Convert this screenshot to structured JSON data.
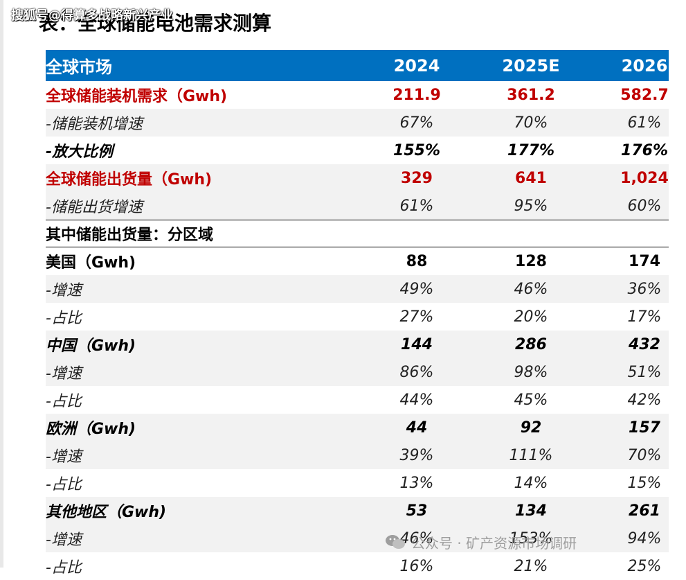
{
  "source": "搜狐号@得算多战略新兴产业",
  "title": "表：全球储能电池需求测算",
  "header": {
    "label": "全球市场",
    "years": [
      "2024",
      "2025E",
      "2026"
    ]
  },
  "rows": [
    {
      "label": "全球储能装机需求（Gwh)",
      "values": [
        "211.9",
        "361.2",
        "582.7"
      ]
    },
    {
      "label": "-储能装机增速",
      "values": [
        "67%",
        "70%",
        "61%"
      ]
    },
    {
      "label": "-放大比例",
      "values": [
        "155%",
        "177%",
        "176%"
      ]
    },
    {
      "label": "全球储能出货量（Gwh)",
      "values": [
        "329",
        "641",
        "1,024"
      ]
    },
    {
      "label": "-储能出货增速",
      "values": [
        "61%",
        "95%",
        "60%"
      ]
    },
    {
      "label": "其中储能出货量：分区域",
      "values": []
    },
    {
      "label": "美国（Gwh)",
      "values": [
        "88",
        "128",
        "174"
      ]
    },
    {
      "label": "-增速",
      "values": [
        "49%",
        "46%",
        "36%"
      ]
    },
    {
      "label": "-占比",
      "values": [
        "27%",
        "20%",
        "17%"
      ]
    },
    {
      "label": "中国（Gwh)",
      "values": [
        "144",
        "286",
        "432"
      ]
    },
    {
      "label": "-增速",
      "values": [
        "86%",
        "98%",
        "51%"
      ]
    },
    {
      "label": "-占比",
      "values": [
        "44%",
        "45%",
        "42%"
      ]
    },
    {
      "label": "欧洲（Gwh)",
      "values": [
        "44",
        "92",
        "157"
      ]
    },
    {
      "label": "-增速",
      "values": [
        "39%",
        "111%",
        "70%"
      ]
    },
    {
      "label": "-占比",
      "values": [
        "13%",
        "14%",
        "15%"
      ]
    },
    {
      "label": "其他地区（Gwh)",
      "values": [
        "53",
        "134",
        "261"
      ]
    },
    {
      "label": "-增速",
      "values": [
        "46%",
        "153%",
        "94%"
      ]
    },
    {
      "label": "-占比",
      "values": [
        "16%",
        "21%",
        "25%"
      ]
    }
  ],
  "watermark": "公众号 · 矿产资源市场调研",
  "colors": {
    "header_bg": "#0070c0",
    "highlight_text": "#c00000",
    "stripe_bg": "#f2f2f2"
  }
}
